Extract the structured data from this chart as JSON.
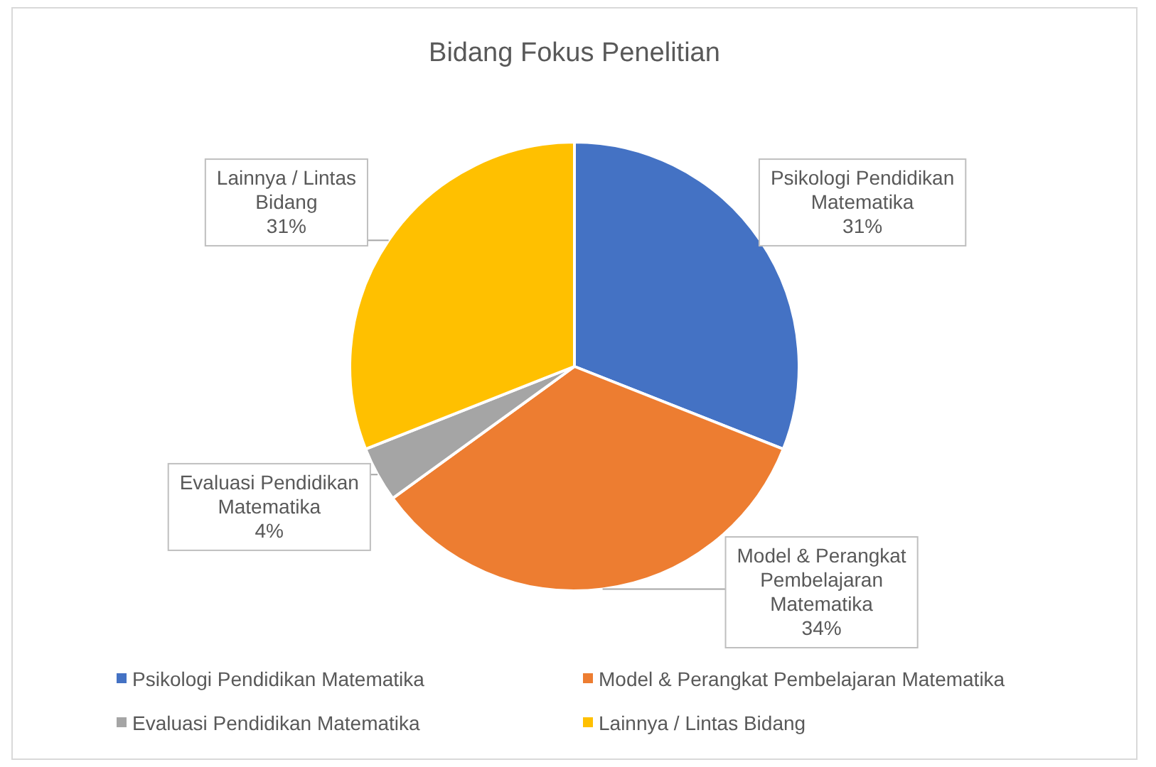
{
  "chart_data": {
    "type": "pie",
    "title": "Bidang Fokus Penelitian",
    "categories": [
      "Psikologi Pendidikan Matematika",
      "Model & Perangkat Pembelajaran Matematika",
      "Evaluasi Pendidikan Matematika",
      "Lainnya / Lintas Bidang"
    ],
    "values": [
      31,
      34,
      4,
      31
    ],
    "colors": [
      "#4472c4",
      "#ed7d31",
      "#a5a5a5",
      "#ffc000"
    ],
    "value_labels": [
      "31%",
      "34%",
      "4%",
      "31%"
    ],
    "legend": "bottom"
  }
}
